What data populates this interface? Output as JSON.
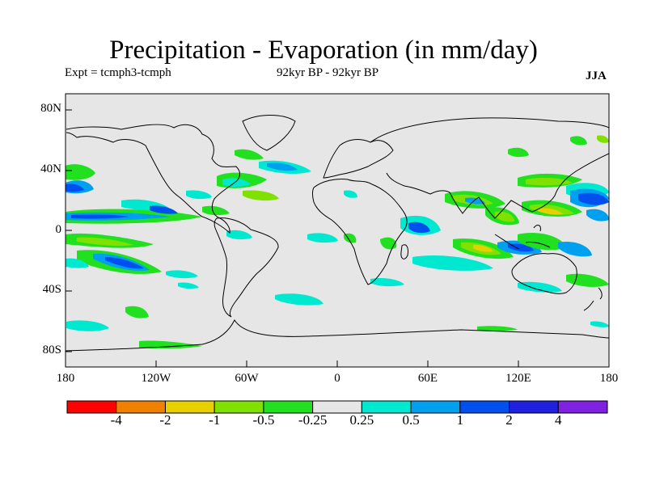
{
  "title": "Precipitation - Evaporation (in mm/day)",
  "subtitle_left": "Expt = tcmph3-tcmph",
  "subtitle_center": "92kyr BP - 92kyr BP",
  "season": "JJA",
  "lat_labels": [
    "80N",
    "40N",
    "0",
    "40S",
    "80S"
  ],
  "lon_labels": [
    "180",
    "120W",
    "60W",
    "0",
    "60E",
    "120E",
    "180"
  ],
  "colorbar": {
    "colors": [
      "#ff0000",
      "#f08000",
      "#e6d000",
      "#80e000",
      "#20e020",
      "#e6e6e6",
      "#00e8d0",
      "#00a0f0",
      "#0050f0",
      "#2020e0",
      "#8020e0"
    ],
    "labels": [
      "-4",
      "-2",
      "-1",
      "-0.5",
      "-0.25",
      "0.25",
      "0.5",
      "1",
      "2",
      "4"
    ]
  },
  "colors": {
    "ocean_fill": "#e6e6e6",
    "coast": "#000000"
  }
}
